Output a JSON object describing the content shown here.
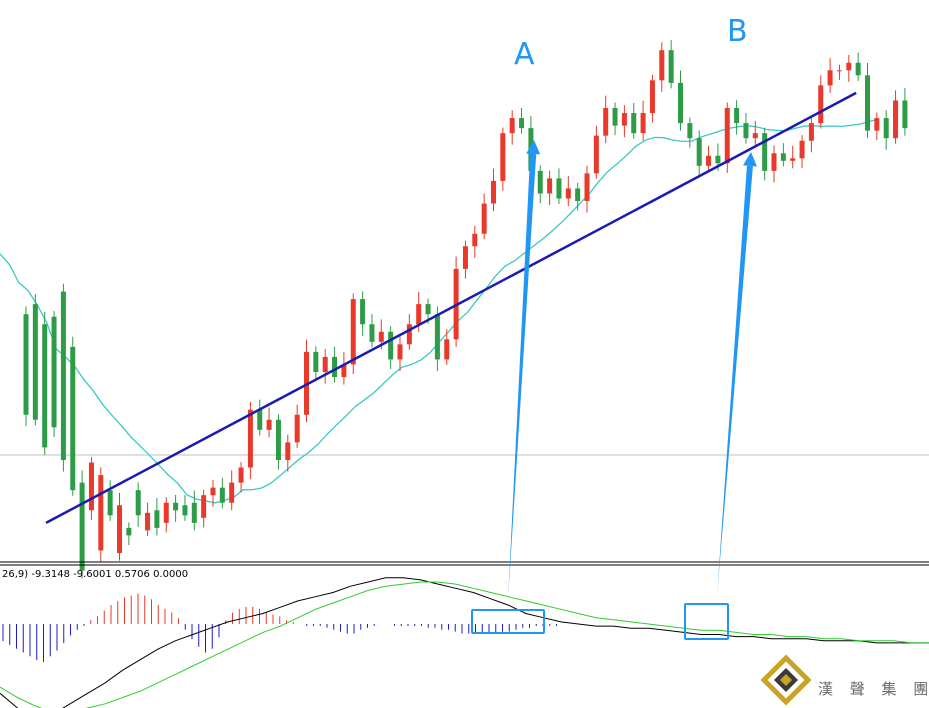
{
  "chart_data": [
    {
      "type": "candlestick",
      "panel": "price",
      "colors": {
        "up": "#e8392a",
        "down": "#2e9b47",
        "moving_average": "#3cc8c8",
        "trendline": "#1b1bb0",
        "arrow": "#2196f3",
        "hline": "#c0c0c0"
      },
      "candles": [
        [
          1,
          48,
          8
        ],
        [
          2,
          52,
          6
        ],
        [
          3,
          44,
          -5
        ],
        [
          4,
          47,
          3
        ],
        [
          5,
          57,
          -10
        ],
        [
          6,
          35,
          -22
        ],
        [
          7,
          -19,
          -54
        ],
        [
          8,
          -30,
          -11
        ],
        [
          9,
          -46,
          -16
        ],
        [
          10,
          -22,
          -32
        ],
        [
          11,
          -47,
          -28
        ],
        [
          12,
          -37,
          -40
        ],
        [
          13,
          -22,
          -32
        ],
        [
          14,
          -38,
          -31
        ],
        [
          15,
          -30,
          -37
        ],
        [
          16,
          -35,
          -27
        ],
        [
          17,
          -27,
          -30
        ],
        [
          18,
          -28,
          -32
        ],
        [
          19,
          -27,
          -35
        ],
        [
          20,
          -33,
          -24
        ],
        [
          21,
          -24,
          -21
        ],
        [
          22,
          -21,
          -27
        ],
        [
          23,
          -27,
          -19
        ],
        [
          24,
          -19,
          -13
        ],
        [
          25,
          -13,
          10
        ],
        [
          26,
          10,
          2
        ],
        [
          27,
          2,
          6
        ],
        [
          28,
          6,
          -10
        ],
        [
          29,
          -10,
          -3
        ],
        [
          30,
          -3,
          8
        ],
        [
          31,
          8,
          33
        ],
        [
          32,
          33,
          25
        ],
        [
          33,
          25,
          31
        ],
        [
          34,
          31,
          23
        ],
        [
          35,
          23,
          28
        ],
        [
          36,
          28,
          54
        ],
        [
          37,
          54,
          44
        ],
        [
          38,
          44,
          37
        ],
        [
          39,
          37,
          41
        ],
        [
          40,
          41,
          30
        ],
        [
          41,
          30,
          36
        ],
        [
          42,
          36,
          44
        ],
        [
          43,
          44,
          52
        ],
        [
          44,
          52,
          48
        ],
        [
          45,
          48,
          30
        ],
        [
          46,
          30,
          38
        ],
        [
          47,
          38,
          66
        ],
        [
          48,
          66,
          75
        ],
        [
          49,
          75,
          80
        ],
        [
          50,
          80,
          92
        ],
        [
          51,
          92,
          101
        ],
        [
          52,
          101,
          120
        ],
        [
          53,
          120,
          126
        ],
        [
          54,
          126,
          122
        ],
        [
          55,
          122,
          105
        ],
        [
          56,
          105,
          96
        ],
        [
          57,
          96,
          102
        ],
        [
          58,
          102,
          94
        ],
        [
          59,
          94,
          98
        ],
        [
          60,
          98,
          93
        ],
        [
          61,
          93,
          104
        ],
        [
          62,
          104,
          119
        ],
        [
          63,
          119,
          130
        ],
        [
          64,
          130,
          123
        ],
        [
          65,
          123,
          128
        ],
        [
          66,
          128,
          120
        ],
        [
          67,
          120,
          128
        ],
        [
          68,
          128,
          141
        ],
        [
          69,
          141,
          153
        ],
        [
          70,
          153,
          140
        ],
        [
          71,
          140,
          124
        ],
        [
          72,
          124,
          118
        ],
        [
          73,
          118,
          107
        ],
        [
          74,
          107,
          111
        ],
        [
          75,
          111,
          108
        ],
        [
          76,
          108,
          130
        ],
        [
          77,
          130,
          124
        ],
        [
          78,
          124,
          118
        ],
        [
          79,
          118,
          120
        ],
        [
          80,
          120,
          105
        ],
        [
          81,
          105,
          112
        ],
        [
          82,
          112,
          109
        ],
        [
          83,
          109,
          110
        ],
        [
          84,
          110,
          117
        ],
        [
          85,
          117,
          124
        ],
        [
          86,
          124,
          139
        ],
        [
          87,
          139,
          145
        ],
        [
          88,
          145,
          145
        ],
        [
          89,
          145,
          148
        ],
        [
          90,
          148,
          143
        ],
        [
          91,
          143,
          121
        ],
        [
          92,
          121,
          126
        ],
        [
          93,
          126,
          118
        ],
        [
          94,
          118,
          133
        ],
        [
          95,
          133,
          122
        ]
      ],
      "trendline": {
        "from": [
          1,
          -35
        ],
        "to": [
          90,
          136
        ]
      },
      "hline": -8,
      "ylim": [
        -45,
        165
      ],
      "annotations": [
        {
          "label": "A",
          "x": 51
        },
        {
          "label": "B",
          "x": 75
        }
      ]
    },
    {
      "type": "macd",
      "panel": "indicator",
      "header": "26,9) -9.3148 -9.6001 0.5706 0.0000",
      "colors": {
        "positive": "#e8392a",
        "negative": "#1b1bcc",
        "macd_line": "#000000",
        "signal_line": "#2ecc2e",
        "highlight": "#2196f3"
      },
      "histogram": [
        -9,
        -11,
        -13,
        -15,
        -17,
        -19,
        -20,
        -17,
        -14,
        -10,
        -6,
        -3,
        -1,
        2,
        4,
        7,
        10,
        12,
        14,
        15,
        16,
        15,
        13,
        10,
        8,
        6,
        3,
        -3,
        -8,
        -12,
        -15,
        -13,
        -7,
        2,
        6,
        8,
        9,
        9,
        8,
        6,
        5,
        4,
        2,
        1,
        0,
        -1,
        -1,
        -1,
        -2,
        -3,
        -4,
        -5,
        -5,
        -3,
        -2,
        -1,
        0,
        0,
        -1,
        -1,
        -1,
        -1,
        -1,
        -2,
        -2,
        -3,
        -3,
        -4,
        -5,
        -5,
        -5,
        -5,
        -5,
        -5,
        -4,
        -4,
        -3,
        -2,
        -2,
        -1,
        -1,
        -1,
        -1,
        0,
        0,
        0,
        0
      ],
      "macd_line": [
        -33,
        -40,
        -45,
        -43,
        -38,
        -33,
        -28,
        -22,
        -17,
        -12,
        -8,
        -5,
        -2,
        1,
        3,
        5,
        8,
        11,
        13,
        15,
        18,
        20,
        22,
        22,
        21,
        19,
        17,
        15,
        12,
        9,
        5,
        3,
        1,
        0,
        -1,
        -1,
        -2,
        -2,
        -3,
        -4,
        -5,
        -5,
        -6,
        -6,
        -7,
        -7,
        -7,
        -8,
        -8,
        -8,
        -9,
        -9,
        -9,
        -9
      ],
      "signal_line": [
        -30,
        -35,
        -39,
        -42,
        -42,
        -40,
        -38,
        -35,
        -32,
        -28,
        -24,
        -20,
        -16,
        -12,
        -8,
        -4,
        -1,
        3,
        7,
        10,
        13,
        16,
        18,
        19,
        20,
        20,
        19,
        17,
        15,
        13,
        11,
        9,
        7,
        5,
        3,
        2,
        1,
        0,
        -1,
        -2,
        -3,
        -3,
        -4,
        -5,
        -5,
        -6,
        -6,
        -7,
        -7,
        -8,
        -8,
        -8,
        -9,
        -9
      ],
      "highlights": [
        {
          "label": "A"
        },
        {
          "label": "B"
        }
      ]
    }
  ],
  "logo": {
    "text": "漢 聲 集 團",
    "colors": {
      "gold": "#c9a227",
      "dark": "#3a3a3a"
    }
  }
}
